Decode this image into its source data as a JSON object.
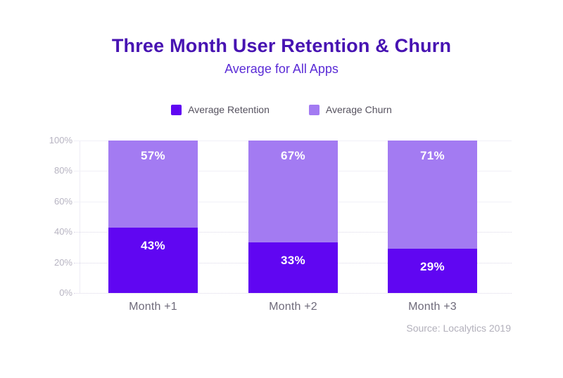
{
  "chart_data": {
    "type": "bar",
    "stacked": true,
    "title": "Three Month User Retention & Churn",
    "subtitle": "Average for All Apps",
    "categories": [
      "Month +1",
      "Month +2",
      "Month +3"
    ],
    "series": [
      {
        "name": "Average Retention",
        "values": [
          43,
          33,
          29
        ],
        "labels": [
          "43%",
          "33%",
          "29%"
        ],
        "color": "#6006f2"
      },
      {
        "name": "Average Churn",
        "values": [
          57,
          67,
          71
        ],
        "labels": [
          "57%",
          "67%",
          "71%"
        ],
        "color": "#a37bf2"
      }
    ],
    "y_axis": {
      "min": 0,
      "max": 100,
      "ticks": [
        100,
        80,
        60,
        40,
        20,
        0
      ],
      "tick_labels": [
        "100%",
        "80%",
        "60%",
        "40%",
        "20%",
        "0%"
      ]
    },
    "ylim": [
      0,
      100
    ],
    "grid": true,
    "legend_position": "top",
    "value_suffix": "%"
  },
  "source_note": "Source: Localytics 2019",
  "colors": {
    "title": "#4713b2",
    "subtitle": "#5b2cd6",
    "legend_text": "#56525f",
    "axis_label": "#b7b4c2",
    "category_label": "#6e6a7a",
    "source_text": "#b2b0bb",
    "value_label": "#ffffff"
  }
}
